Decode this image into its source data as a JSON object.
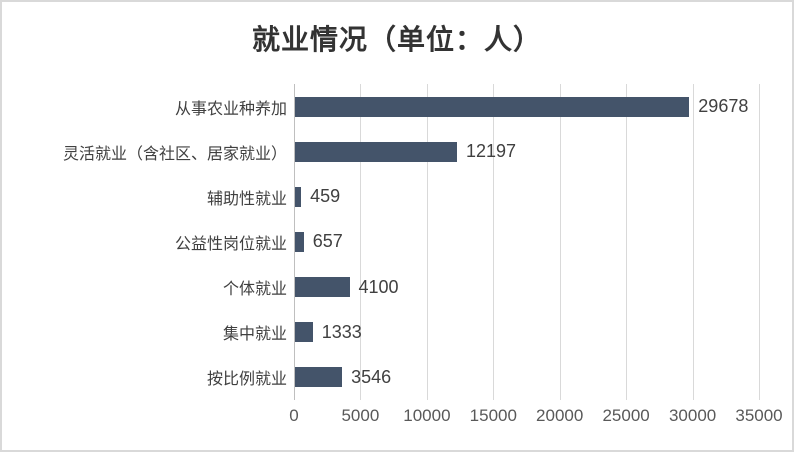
{
  "chart_data": {
    "type": "bar",
    "orientation": "horizontal",
    "title": "就业情况（单位：人）",
    "categories": [
      "从事农业种养加",
      "灵活就业（含社区、居家就业）",
      "辅助性就业",
      "公益性岗位就业",
      "个体就业",
      "集中就业",
      "按比例就业"
    ],
    "values": [
      29678,
      12197,
      459,
      657,
      4100,
      1333,
      3546
    ],
    "value_labels": [
      "29678",
      "12197",
      "459",
      "657",
      "4100",
      "1333",
      "3546"
    ],
    "x_ticks": [
      "0",
      "5000",
      "10000",
      "15000",
      "20000",
      "25000",
      "30000",
      "35000"
    ],
    "xlim": [
      0,
      35000
    ],
    "xlabel": "",
    "ylabel": "",
    "legend": "none",
    "grid": "vertical-major",
    "value_label_position": "outside-end"
  },
  "colors": {
    "bar": "#44546A",
    "gridline": "#D9D9D9",
    "axis_line": "#BFBFBF",
    "title_text": "#333333",
    "category_text": "#404040",
    "value_text": "#404040",
    "tick_text": "#595959",
    "chart_border": "#D9D9D9",
    "background": "#FFFFFF"
  }
}
